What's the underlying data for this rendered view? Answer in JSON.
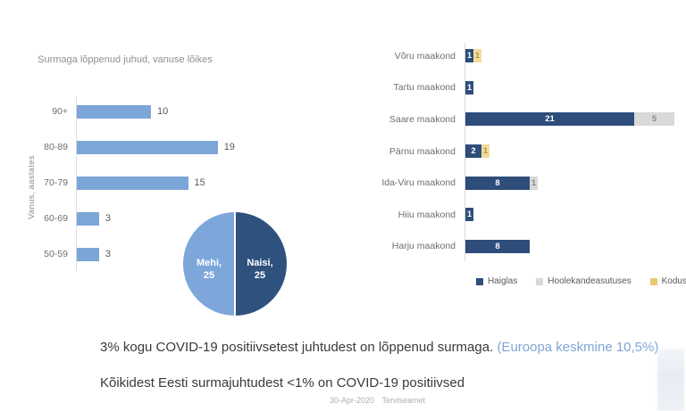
{
  "summary": {
    "line1_main": "3% kogu COVID-19 positiivsetest juhtudest on lõppenud surmaga.",
    "line1_note": "(Euroopa keskmine 10,5%)",
    "line2": "Kõikidest Eesti surmajuhtudest <1% on COVID-19 positiivsed"
  },
  "footer": {
    "date": "30-Apr-2020",
    "source": "Terviseamet"
  },
  "colors": {
    "light_blue": "#7CA5D8",
    "dark_navy": "#2E4D7B",
    "gray": "#D9D9D9",
    "yellow": "#F2DC9B",
    "note_blue": "#7FA7D6"
  },
  "chart_data": [
    {
      "type": "bar",
      "orientation": "horizontal",
      "title": "Surmaga lõppenud juhud, vanuse lõikes",
      "ylabel": "Vanus, aastates",
      "categories": [
        "90+",
        "80-89",
        "70-79",
        "60-69",
        "50-59"
      ],
      "values": [
        10,
        19,
        15,
        3,
        3
      ],
      "bar_color": "#7CA5D8",
      "xlim": [
        0,
        20
      ],
      "grid": false,
      "value_labels": "outside-end"
    },
    {
      "type": "pie",
      "labels": [
        "Mehi",
        "Naisi"
      ],
      "slice_titles": [
        "Mehi,",
        "Naisi,"
      ],
      "values": [
        25,
        25
      ],
      "colors": [
        "#7DA7DB",
        "#2E517E"
      ]
    },
    {
      "type": "bar",
      "orientation": "horizontal",
      "stacked": true,
      "categories": [
        "Võru maakond",
        "Tartu maakond",
        "Saare maakond",
        "Pärnu maakond",
        "Ida-Viru maakond",
        "Hiiu maakond",
        "Harju maakond"
      ],
      "series": [
        {
          "name": "Haiglas",
          "color": "#2E4D7B",
          "label_color": "#FFFFFF",
          "values": [
            1,
            1,
            21,
            2,
            8,
            1,
            8
          ]
        },
        {
          "name": "Hoolekandeasutuses",
          "color": "#D9D9D9",
          "label_color": "#8A8A8A",
          "values": [
            0,
            0,
            5,
            0,
            1,
            0,
            0
          ]
        },
        {
          "name": "Kodus",
          "color": "#F2DC9B",
          "legend_color": "#E9C96F",
          "label_color": "#B8923D",
          "values": [
            1,
            0,
            0,
            1,
            0,
            0,
            0
          ]
        }
      ],
      "xlim": [
        0,
        27
      ],
      "grid": false,
      "legend_position": "bottom",
      "value_labels": "inside-center"
    }
  ]
}
